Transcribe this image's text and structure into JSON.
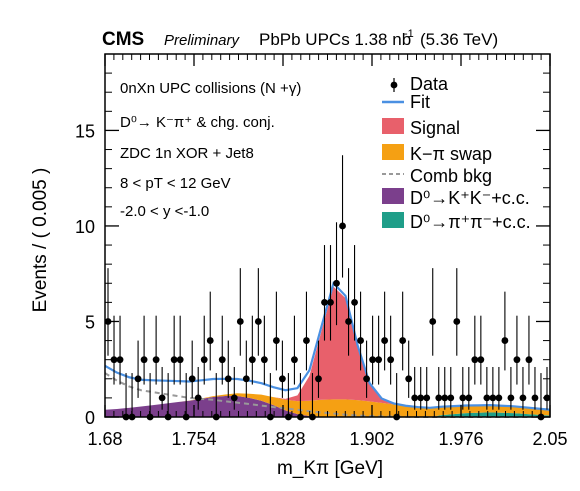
{
  "header": {
    "experiment": "CMS",
    "status": "Preliminary",
    "dataset": "PbPb UPCs 1.38 nb",
    "lumi_exp": "-1",
    "energy": "(5.36 TeV)"
  },
  "annotations": [
    "0nXn UPC collisions (N +γ)",
    "D⁰→ K⁻π⁺ & chg. conj.",
    "ZDC 1n XOR + Jet8",
    "8 < pT < 12 GeV",
    "-2.0 < y <-1.0"
  ],
  "legend": [
    {
      "label": "Data",
      "kind": "marker",
      "color": "#000000"
    },
    {
      "label": "Fit",
      "kind": "line",
      "color": "#4a90e2"
    },
    {
      "label": "Signal",
      "kind": "box",
      "color": "#e8606b"
    },
    {
      "label": "K−π swap",
      "kind": "box",
      "color": "#f5a013"
    },
    {
      "label": "Comb bkg",
      "kind": "dash",
      "color": "#999999"
    },
    {
      "label": "D⁰→K⁺K⁻+c.c.",
      "kind": "box",
      "color": "#7b3f8c"
    },
    {
      "label": "D⁰→π⁺π⁻+c.c.",
      "kind": "box",
      "color": "#1f9e89"
    }
  ],
  "chart_data": {
    "type": "scatter",
    "xlabel": "m_Kπ [GeV]",
    "ylabel": "Events / ( 0.005 )",
    "xlim": [
      1.68,
      2.05
    ],
    "ylim": [
      0,
      19
    ],
    "xticks": [
      "1.68",
      "1.754",
      "1.828",
      "1.902",
      "1.976",
      "2.05"
    ],
    "yticks": [
      "0",
      "5",
      "10",
      "15"
    ],
    "data": {
      "x": [
        1.6825,
        1.6875,
        1.6925,
        1.6975,
        1.7025,
        1.7075,
        1.7125,
        1.7175,
        1.7225,
        1.7275,
        1.7325,
        1.7375,
        1.7425,
        1.7475,
        1.7525,
        1.7575,
        1.7625,
        1.7675,
        1.7725,
        1.7775,
        1.7825,
        1.7875,
        1.7925,
        1.7975,
        1.8025,
        1.8075,
        1.8125,
        1.8175,
        1.8225,
        1.8275,
        1.8325,
        1.8375,
        1.8425,
        1.8475,
        1.8525,
        1.8575,
        1.8625,
        1.8675,
        1.8725,
        1.8775,
        1.8825,
        1.8875,
        1.8925,
        1.8975,
        1.9025,
        1.9075,
        1.9125,
        1.9175,
        1.9225,
        1.9275,
        1.9325,
        1.9375,
        1.9425,
        1.9475,
        1.9525,
        1.9575,
        1.9625,
        1.9675,
        1.9725,
        1.9775,
        1.9825,
        1.9875,
        1.9925,
        1.9975,
        2.0025,
        2.0075,
        2.0125,
        2.0175,
        2.0225,
        2.0275,
        2.0325,
        2.0375,
        2.0425,
        2.0475
      ],
      "y": [
        5,
        3,
        3,
        0,
        0,
        2,
        3,
        0,
        3,
        1,
        0,
        3,
        3,
        0,
        2,
        1,
        3,
        4,
        0,
        3,
        2,
        1,
        5,
        2,
        3,
        5,
        3,
        0,
        4,
        2,
        0,
        3,
        0,
        4,
        0,
        2,
        6,
        6,
        7,
        10,
        5,
        6,
        4,
        2,
        3,
        3,
        4,
        3,
        0,
        4,
        2,
        1,
        1,
        1,
        5,
        1,
        1,
        1,
        5,
        1,
        1,
        3,
        3,
        1,
        1,
        1,
        4,
        1,
        3,
        1,
        3,
        1,
        0,
        1
      ]
    },
    "components": {
      "x": [
        1.68,
        1.69,
        1.7,
        1.71,
        1.72,
        1.73,
        1.74,
        1.75,
        1.76,
        1.77,
        1.78,
        1.79,
        1.8,
        1.81,
        1.82,
        1.83,
        1.84,
        1.85,
        1.86,
        1.87,
        1.88,
        1.89,
        1.9,
        1.91,
        1.92,
        1.93,
        1.94,
        1.95,
        1.96,
        1.97,
        1.98,
        1.99,
        2.0,
        2.01,
        2.02,
        2.03,
        2.04,
        2.05
      ],
      "signal": [
        0,
        0,
        0,
        0,
        0,
        0,
        0,
        0,
        0,
        0,
        0,
        0,
        0,
        0,
        0,
        0.05,
        0.3,
        1.3,
        3.6,
        5.9,
        5.3,
        2.8,
        0.9,
        0.2,
        0.03,
        0,
        0,
        0,
        0,
        0,
        0,
        0,
        0,
        0,
        0,
        0,
        0,
        0
      ],
      "swap": [
        0,
        0,
        0,
        0,
        0,
        0,
        0,
        0.01,
        0.02,
        0.04,
        0.08,
        0.14,
        0.22,
        0.32,
        0.42,
        0.55,
        0.68,
        0.8,
        0.88,
        0.92,
        0.92,
        0.88,
        0.82,
        0.74,
        0.66,
        0.58,
        0.52,
        0.48,
        0.44,
        0.42,
        0.4,
        0.39,
        0.38,
        0.37,
        0.36,
        0.34,
        0.32,
        0.3
      ],
      "comb": [
        2.3,
        1.9,
        1.6,
        1.4,
        1.3,
        1.2,
        1.1,
        1.0,
        0.95,
        0.9,
        0.82,
        0.75,
        0.68,
        0.6,
        0.52,
        0.45,
        0.38,
        0.3,
        0.24,
        0.18,
        0.12,
        0.08,
        0.05,
        0.03,
        0.02,
        0.01,
        0,
        0,
        0,
        0,
        0,
        0,
        0,
        0,
        0,
        0,
        0,
        0
      ],
      "kk": [
        0.38,
        0.42,
        0.48,
        0.55,
        0.62,
        0.7,
        0.78,
        0.85,
        0.95,
        1.05,
        1.1,
        1.1,
        1.0,
        0.85,
        0.62,
        0.35,
        0.15,
        0.05,
        0.02,
        0,
        0,
        0,
        0,
        0,
        0,
        0,
        0,
        0,
        0,
        0,
        0,
        0,
        0,
        0,
        0,
        0,
        0,
        0
      ],
      "pipi": [
        0,
        0,
        0,
        0,
        0,
        0,
        0,
        0,
        0,
        0,
        0,
        0,
        0,
        0,
        0,
        0,
        0,
        0,
        0,
        0,
        0,
        0,
        0,
        0,
        0,
        0,
        0,
        0,
        0.1,
        0.15,
        0.2,
        0.22,
        0.24,
        0.22,
        0.2,
        0.16,
        0.12,
        0.08
      ]
    }
  }
}
